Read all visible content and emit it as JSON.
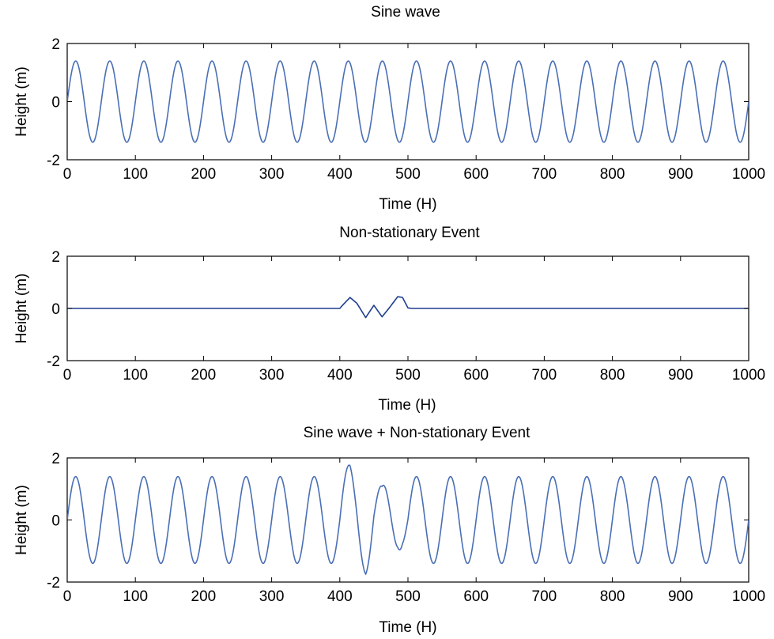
{
  "chart_data": [
    {
      "type": "line",
      "title": "Sine wave",
      "xlabel": "Time (H)",
      "ylabel": "Height (m)",
      "xlim": [
        0,
        1000
      ],
      "ylim": [
        -2,
        2
      ],
      "xticks": [
        0,
        100,
        200,
        300,
        400,
        500,
        600,
        700,
        800,
        900,
        1000
      ],
      "yticks": [
        -2,
        0,
        2
      ],
      "grid": false,
      "line_color": "#4a6fb5",
      "series": [
        {
          "function": "1.4 * sin(2*pi*t/50)",
          "amplitude": 1.4,
          "period": 50,
          "x_start": 0,
          "x_end": 1000,
          "components": [
            "sine"
          ]
        }
      ]
    },
    {
      "type": "line",
      "title": "Non-stationary Event",
      "xlabel": "Time (H)",
      "ylabel": "Height (m)",
      "xlim": [
        0,
        1000
      ],
      "ylim": [
        -2,
        2
      ],
      "xticks": [
        0,
        100,
        200,
        300,
        400,
        500,
        600,
        700,
        800,
        900,
        1000
      ],
      "yticks": [
        -2,
        0,
        2
      ],
      "grid": false,
      "line_color": "#1f3d8f",
      "series": [
        {
          "function": "0 outside 400-500; short oscillation burst between 400 and 500",
          "x_start": 0,
          "x_end": 1000,
          "components": [
            "event"
          ],
          "event_points": [
            [
              0,
              0
            ],
            [
              400,
              0
            ],
            [
              405,
              0.15
            ],
            [
              415,
              0.42
            ],
            [
              425,
              0.2
            ],
            [
              438,
              -0.35
            ],
            [
              450,
              0.12
            ],
            [
              462,
              -0.32
            ],
            [
              472,
              0.0
            ],
            [
              485,
              0.45
            ],
            [
              492,
              0.42
            ],
            [
              500,
              0.02
            ],
            [
              505,
              0
            ],
            [
              1000,
              0
            ]
          ]
        }
      ]
    },
    {
      "type": "line",
      "title": "Sine wave + Non-stationary Event",
      "xlabel": "Time (H)",
      "ylabel": "Height (m)",
      "xlim": [
        0,
        1000
      ],
      "ylim": [
        -2,
        2
      ],
      "xticks": [
        0,
        100,
        200,
        300,
        400,
        500,
        600,
        700,
        800,
        900,
        1000
      ],
      "yticks": [
        -2,
        0,
        2
      ],
      "grid": false,
      "line_color": "#4a6fb5",
      "series": [
        {
          "function": "1.4 * sin(2*pi*t/50) + non-stationary event",
          "amplitude": 1.4,
          "period": 50,
          "x_start": 0,
          "x_end": 1000,
          "components": [
            "sine",
            "event"
          ],
          "event_points": [
            [
              0,
              0
            ],
            [
              400,
              0
            ],
            [
              405,
              0.15
            ],
            [
              415,
              0.42
            ],
            [
              425,
              0.2
            ],
            [
              438,
              -0.35
            ],
            [
              450,
              0.12
            ],
            [
              462,
              -0.32
            ],
            [
              472,
              0.0
            ],
            [
              485,
              0.45
            ],
            [
              492,
              0.42
            ],
            [
              500,
              0.02
            ],
            [
              505,
              0
            ],
            [
              1000,
              0
            ]
          ]
        }
      ]
    }
  ]
}
